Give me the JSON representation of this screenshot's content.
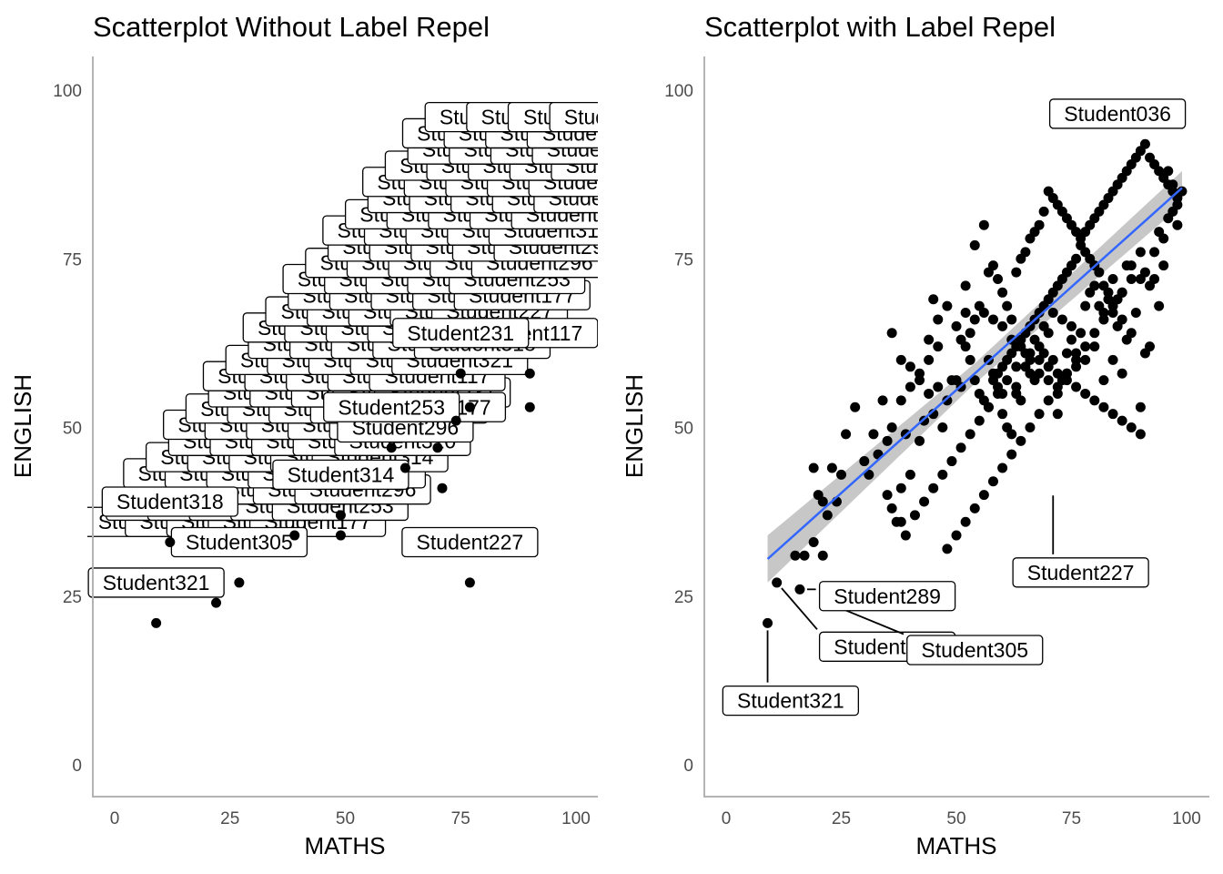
{
  "panels": [
    {
      "title": "Scatterplot Without Label Repel",
      "xlabel": "MATHS",
      "ylabel": "ENGLISH"
    },
    {
      "title": "Scatterplot with Label Repel",
      "xlabel": "MATHS",
      "ylabel": "ENGLISH"
    }
  ],
  "chart_data": [
    {
      "type": "scatter",
      "title": "Scatterplot Without Label Repel",
      "xlabel": "MATHS",
      "ylabel": "ENGLISH",
      "xlim": [
        0,
        100
      ],
      "ylim": [
        0,
        100
      ],
      "xticks": [
        0,
        25,
        50,
        75,
        100
      ],
      "yticks": [
        0,
        25,
        50,
        75,
        100
      ],
      "grid": false,
      "label_style": "boxed labels centered on points (no repel), heavily overlapping",
      "points": [
        {
          "x": 9,
          "y": 21,
          "label": "Student321"
        },
        {
          "x": 22,
          "y": 24,
          "label": ""
        },
        {
          "x": 12,
          "y": 33,
          "label": "Student318"
        },
        {
          "x": 27,
          "y": 27,
          "label": "Student305"
        },
        {
          "x": 77,
          "y": 27,
          "label": "Student227"
        },
        {
          "x": 39,
          "y": 34,
          "label": ""
        },
        {
          "x": 49,
          "y": 34,
          "label": ""
        },
        {
          "x": 49,
          "y": 37,
          "label": "Student314"
        },
        {
          "x": 71,
          "y": 41,
          "label": ""
        },
        {
          "x": 63,
          "y": 44,
          "label": "Student296"
        },
        {
          "x": 70,
          "y": 47,
          "label": "Student177"
        },
        {
          "x": 60,
          "y": 47,
          "label": "Student253"
        },
        {
          "x": 74,
          "y": 51,
          "label": ""
        },
        {
          "x": 77,
          "y": 53,
          "label": ""
        },
        {
          "x": 90,
          "y": 53,
          "label": ""
        },
        {
          "x": 90,
          "y": 58,
          "label": "Student117"
        },
        {
          "x": 75,
          "y": 58,
          "label": "Student231"
        }
      ],
      "visible_label_texts": [
        "Student321",
        "Student318",
        "Student305",
        "Student227",
        "Student177",
        "Student253",
        "Student296",
        "Student297",
        "Student314",
        "Student310",
        "Student277",
        "Student248",
        "Student231",
        "Student117"
      ]
    },
    {
      "type": "scatter",
      "title": "Scatterplot with Label Repel",
      "xlabel": "MATHS",
      "ylabel": "ENGLISH",
      "xlim": [
        0,
        100
      ],
      "ylim": [
        0,
        100
      ],
      "xticks": [
        0,
        25,
        50,
        75,
        100
      ],
      "yticks": [
        0,
        25,
        50,
        75,
        100
      ],
      "grid": false,
      "trend_line": {
        "method": "linear fit with confidence band",
        "color": "#3366FF",
        "band_color": "#bdbdbd",
        "x_range": [
          9,
          99
        ],
        "y_at_start": 30.5,
        "y_at_end": 85.5,
        "band_half_width": [
          3.5,
          1.5,
          2.5
        ]
      },
      "labeled_points": [
        {
          "x": 9,
          "y": 21,
          "label": "Student321"
        },
        {
          "x": 11,
          "y": 27,
          "label": "Student318"
        },
        {
          "x": 22,
          "y": 24,
          "label": "Student305"
        },
        {
          "x": 16,
          "y": 26,
          "label": "Student289"
        },
        {
          "x": 71,
          "y": 41,
          "label": "Student227"
        },
        {
          "x": 93,
          "y": 93,
          "label": "Student036"
        }
      ],
      "points": [
        [
          9,
          21
        ],
        [
          11,
          27
        ],
        [
          16,
          26
        ],
        [
          15,
          31
        ],
        [
          17,
          31
        ],
        [
          19,
          33
        ],
        [
          21,
          31
        ],
        [
          22,
          24
        ],
        [
          20,
          40
        ],
        [
          19,
          44
        ],
        [
          21,
          39
        ],
        [
          24,
          39
        ],
        [
          22,
          37
        ],
        [
          25,
          43
        ],
        [
          23,
          44
        ],
        [
          26,
          49
        ],
        [
          28,
          53
        ],
        [
          30,
          45
        ],
        [
          31,
          43
        ],
        [
          32,
          49
        ],
        [
          34,
          54
        ],
        [
          33,
          46
        ],
        [
          35,
          48
        ],
        [
          35,
          40
        ],
        [
          36,
          50
        ],
        [
          38,
          41
        ],
        [
          39,
          49
        ],
        [
          40,
          43
        ],
        [
          36,
          38
        ],
        [
          37,
          36
        ],
        [
          38,
          36
        ],
        [
          39,
          34
        ],
        [
          42,
          48
        ],
        [
          43,
          51
        ],
        [
          44,
          55
        ],
        [
          45,
          52
        ],
        [
          46,
          56
        ],
        [
          47,
          50
        ],
        [
          48,
          54
        ],
        [
          49,
          57
        ],
        [
          50,
          57
        ],
        [
          51,
          56
        ],
        [
          51,
          63
        ],
        [
          52,
          62
        ],
        [
          53,
          60
        ],
        [
          54,
          57
        ],
        [
          55,
          55
        ],
        [
          56,
          54
        ],
        [
          57,
          53
        ],
        [
          58,
          58
        ],
        [
          59,
          56
        ],
        [
          60,
          55
        ],
        [
          60,
          52
        ],
        [
          61,
          50
        ],
        [
          62,
          49
        ],
        [
          63,
          55
        ],
        [
          63,
          56
        ],
        [
          64,
          54
        ],
        [
          65,
          59
        ],
        [
          66,
          60
        ],
        [
          66,
          58
        ],
        [
          67,
          57
        ],
        [
          68,
          62
        ],
        [
          68,
          58
        ],
        [
          69,
          61
        ],
        [
          70,
          64
        ],
        [
          70,
          57
        ],
        [
          71,
          60
        ],
        [
          72,
          52
        ],
        [
          72,
          55
        ],
        [
          73,
          57
        ],
        [
          74,
          58
        ],
        [
          74,
          61
        ],
        [
          75,
          63
        ],
        [
          76,
          61
        ],
        [
          77,
          64
        ],
        [
          78,
          68
        ],
        [
          79,
          70
        ],
        [
          80,
          71
        ],
        [
          81,
          68
        ],
        [
          82,
          67
        ],
        [
          83,
          70
        ],
        [
          84,
          72
        ],
        [
          85,
          69
        ],
        [
          86,
          70
        ],
        [
          87,
          74
        ],
        [
          88,
          74
        ],
        [
          89,
          67
        ],
        [
          90,
          72
        ],
        [
          91,
          73
        ],
        [
          92,
          71
        ],
        [
          93,
          76
        ],
        [
          94,
          79
        ],
        [
          95,
          78
        ],
        [
          96,
          81
        ],
        [
          97,
          82
        ],
        [
          98,
          84
        ],
        [
          99,
          85
        ],
        [
          96,
          88
        ],
        [
          97,
          86
        ],
        [
          98,
          80
        ],
        [
          95,
          74
        ],
        [
          93,
          72
        ],
        [
          94,
          68
        ],
        [
          92,
          62
        ],
        [
          91,
          61
        ],
        [
          90,
          53
        ],
        [
          88,
          64
        ],
        [
          87,
          63
        ],
        [
          86,
          66
        ],
        [
          85,
          65
        ],
        [
          84,
          67
        ],
        [
          83,
          69
        ],
        [
          82,
          71
        ],
        [
          81,
          73
        ],
        [
          80,
          74
        ],
        [
          79,
          75
        ],
        [
          78,
          76
        ],
        [
          77,
          77
        ],
        [
          76,
          75
        ],
        [
          75,
          74
        ],
        [
          74,
          73
        ],
        [
          73,
          72
        ],
        [
          72,
          71
        ],
        [
          71,
          70
        ],
        [
          70,
          69
        ],
        [
          69,
          68
        ],
        [
          68,
          67
        ],
        [
          67,
          66
        ],
        [
          66,
          65
        ],
        [
          65,
          64
        ],
        [
          64,
          63
        ],
        [
          63,
          62
        ],
        [
          62,
          61
        ],
        [
          61,
          60
        ],
        [
          60,
          59
        ],
        [
          59,
          58
        ],
        [
          58,
          57
        ],
        [
          57,
          60
        ],
        [
          56,
          80
        ],
        [
          54,
          77
        ],
        [
          52,
          71
        ],
        [
          53,
          64
        ],
        [
          55,
          68
        ],
        [
          57,
          73
        ],
        [
          58,
          74
        ],
        [
          59,
          72
        ],
        [
          60,
          70
        ],
        [
          61,
          68
        ],
        [
          62,
          66
        ],
        [
          63,
          73
        ],
        [
          64,
          75
        ],
        [
          65,
          76
        ],
        [
          66,
          78
        ],
        [
          67,
          79
        ],
        [
          68,
          80
        ],
        [
          69,
          82
        ],
        [
          70,
          85
        ],
        [
          71,
          84
        ],
        [
          72,
          83
        ],
        [
          73,
          82
        ],
        [
          74,
          81
        ],
        [
          75,
          80
        ],
        [
          76,
          79
        ],
        [
          77,
          78
        ],
        [
          78,
          79
        ],
        [
          79,
          80
        ],
        [
          80,
          81
        ],
        [
          81,
          82
        ],
        [
          82,
          83
        ],
        [
          83,
          84
        ],
        [
          84,
          85
        ],
        [
          85,
          86
        ],
        [
          86,
          87
        ],
        [
          87,
          88
        ],
        [
          88,
          89
        ],
        [
          89,
          90
        ],
        [
          90,
          91
        ],
        [
          91,
          92
        ],
        [
          92,
          90
        ],
        [
          93,
          89
        ],
        [
          94,
          88
        ],
        [
          95,
          87
        ],
        [
          96,
          86
        ],
        [
          97,
          85
        ],
        [
          98,
          83
        ],
        [
          90,
          76
        ],
        [
          88,
          72
        ],
        [
          86,
          70
        ],
        [
          84,
          68
        ],
        [
          82,
          66
        ],
        [
          80,
          64
        ],
        [
          78,
          62
        ],
        [
          76,
          60
        ],
        [
          74,
          58
        ],
        [
          72,
          56
        ],
        [
          70,
          54
        ],
        [
          68,
          52
        ],
        [
          66,
          50
        ],
        [
          64,
          48
        ],
        [
          62,
          46
        ],
        [
          60,
          44
        ],
        [
          58,
          42
        ],
        [
          56,
          40
        ],
        [
          54,
          38
        ],
        [
          52,
          36
        ],
        [
          50,
          34
        ],
        [
          48,
          32
        ],
        [
          86,
          58
        ],
        [
          84,
          60
        ],
        [
          82,
          57
        ],
        [
          80,
          62
        ],
        [
          78,
          60
        ],
        [
          76,
          59
        ],
        [
          75,
          65
        ],
        [
          73,
          66
        ],
        [
          71,
          67
        ],
        [
          69,
          65
        ],
        [
          67,
          63
        ],
        [
          65,
          61
        ],
        [
          63,
          59
        ],
        [
          61,
          57
        ],
        [
          59,
          55
        ],
        [
          57,
          53
        ],
        [
          55,
          51
        ],
        [
          53,
          49
        ],
        [
          51,
          47
        ],
        [
          49,
          45
        ],
        [
          47,
          43
        ],
        [
          45,
          41
        ],
        [
          43,
          39
        ],
        [
          41,
          37
        ],
        [
          46,
          62
        ],
        [
          44,
          60
        ],
        [
          42,
          58
        ],
        [
          40,
          56
        ],
        [
          38,
          54
        ],
        [
          45,
          69
        ],
        [
          36,
          64
        ],
        [
          38,
          60
        ],
        [
          40,
          59
        ],
        [
          42,
          57
        ],
        [
          44,
          63
        ],
        [
          46,
          66
        ],
        [
          48,
          68
        ],
        [
          50,
          65
        ],
        [
          52,
          67
        ],
        [
          54,
          66
        ],
        [
          56,
          67
        ],
        [
          58,
          66
        ],
        [
          60,
          65
        ],
        [
          62,
          63
        ],
        [
          64,
          62
        ],
        [
          66,
          61
        ],
        [
          68,
          60
        ],
        [
          70,
          59
        ],
        [
          72,
          58
        ],
        [
          74,
          57
        ],
        [
          76,
          56
        ],
        [
          78,
          55
        ],
        [
          80,
          54
        ],
        [
          82,
          53
        ],
        [
          84,
          52
        ],
        [
          86,
          51
        ],
        [
          88,
          50
        ],
        [
          90,
          49
        ]
      ]
    }
  ]
}
